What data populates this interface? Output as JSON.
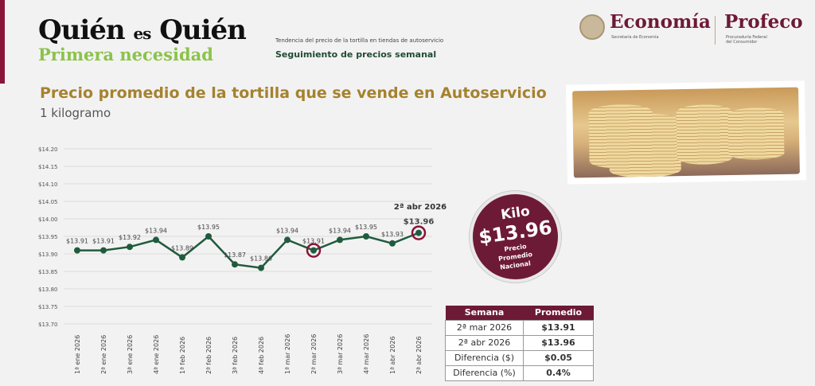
{
  "header": {
    "logo_line1_a": "Quién",
    "logo_line1_b": "es",
    "logo_line1_c": "Quién",
    "logo_line2": "Primera necesidad",
    "subtitle_small": "Tendencia del precio de la tortilla en tiendas de autoservicio",
    "subtitle": "Seguimiento de precios semanal",
    "economia": "Economía",
    "economia_sub": "Secretaría de Economía",
    "profeco": "Profeco",
    "profeco_sub1": "Procuraduría Federal",
    "profeco_sub2": "del Consumidor"
  },
  "badge": {
    "label": "Kilo",
    "value": "$13.96",
    "line1": "Precio",
    "line2": "Promedio",
    "line3": "Nacional"
  },
  "table": {
    "headers": [
      "Semana",
      "Promedio"
    ],
    "rows": [
      [
        "2ª mar 2026",
        "$13.91"
      ],
      [
        "2ª abr 2026",
        "$13.96"
      ],
      [
        "Diferencia ($)",
        "$0.05"
      ],
      [
        "Diferencia (%)",
        "0.4%"
      ]
    ]
  },
  "chart_data": {
    "type": "line",
    "title": "Precio promedio de la tortilla que se vende en Autoservicio",
    "subtitle": "1 kilogramo",
    "categories": [
      "1ª ene 2026",
      "2ª ene 2026",
      "3ª ene 2026",
      "4ª ene 2026",
      "1ª feb 2026",
      "2ª feb 2026",
      "3ª feb 2026",
      "4ª feb 2026",
      "1ª mar 2026",
      "2ª mar 2026",
      "3ª mar 2026",
      "4ª mar 2026",
      "1ª abr 2026",
      "2ª abr 2026"
    ],
    "values": [
      13.91,
      13.91,
      13.92,
      13.94,
      13.89,
      13.95,
      13.87,
      13.86,
      13.94,
      13.91,
      13.94,
      13.95,
      13.93,
      13.96
    ],
    "labels": [
      "$13.91",
      "$13.91",
      "$13.92",
      "$13.94",
      "$13.89",
      "$13.95",
      "$13.87",
      "$13.86",
      "$13.94",
      "$13.91",
      "$13.94",
      "$13.95",
      "$13.93",
      "$13.96"
    ],
    "ylim": [
      13.7,
      14.2
    ],
    "yticks": [
      "$14.20",
      "$14.15",
      "$14.10",
      "$14.05",
      "$14.00",
      "$13.95",
      "$13.90",
      "$13.85",
      "$13.80",
      "$13.75",
      "$13.70"
    ],
    "highlighted": [
      9,
      13
    ],
    "annotation": "2ª abr 2026",
    "line_color": "#1f5c3e",
    "highlight_color": "#8a1538",
    "grid": true
  }
}
